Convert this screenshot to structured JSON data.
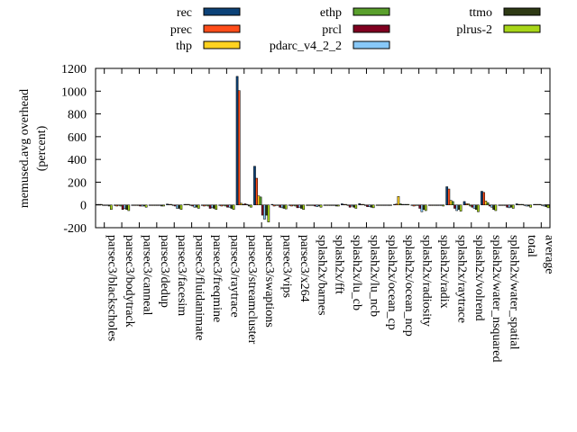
{
  "chart_data": {
    "type": "bar",
    "ylabel": "memused.avg overhead\n(percent)",
    "xlabel": "",
    "title": "",
    "ylim": [
      -200,
      1200
    ],
    "yticks": [
      -200,
      0,
      200,
      400,
      600,
      800,
      1000,
      1200
    ],
    "legend_position": "top",
    "categories": [
      "parsec3/blackscholes",
      "parsec3/bodytrack",
      "parsec3/canneal",
      "parsec3/dedup",
      "parsec3/facesim",
      "parsec3/fluidanimate",
      "parsec3/freqmine",
      "parsec3/raytrace",
      "parsec3/streamcluster",
      "parsec3/swaptions",
      "parsec3/vips",
      "parsec3/x264",
      "splash2x/barnes",
      "splash2x/fft",
      "splash2x/lu_cb",
      "splash2x/lu_ncb",
      "splash2x/ocean_cp",
      "splash2x/ocean_ncp",
      "splash2x/radiosity",
      "splash2x/radix",
      "splash2x/raytrace",
      "splash2x/volrend",
      "splash2x/water_nsquared",
      "splash2x/water_spatial",
      "total",
      "average"
    ],
    "series": [
      {
        "name": "rec",
        "color": "#0c4278",
        "values": [
          5,
          -5,
          -5,
          -5,
          8,
          5,
          -5,
          -5,
          1130,
          340,
          5,
          -5,
          -5,
          -5,
          10,
          12,
          -3,
          5,
          -5,
          -5,
          160,
          30,
          120,
          -5,
          10,
          5
        ]
      },
      {
        "name": "prec",
        "color": "#ff4d1a",
        "values": [
          5,
          -10,
          -5,
          -5,
          5,
          5,
          -10,
          -10,
          1005,
          235,
          -10,
          -10,
          -5,
          -5,
          5,
          5,
          -3,
          8,
          -10,
          -5,
          140,
          10,
          110,
          -5,
          5,
          5
        ]
      },
      {
        "name": "thp",
        "color": "#ffd21f",
        "values": [
          5,
          -5,
          -5,
          -5,
          5,
          5,
          -5,
          -5,
          15,
          80,
          -5,
          -5,
          -5,
          -5,
          5,
          5,
          -3,
          75,
          -5,
          -5,
          40,
          10,
          35,
          -5,
          5,
          5
        ]
      },
      {
        "name": "ethp",
        "color": "#5aa02c",
        "values": [
          -5,
          -10,
          -5,
          -5,
          -5,
          -5,
          -10,
          -10,
          5,
          70,
          -5,
          -10,
          -5,
          -5,
          -5,
          -5,
          -3,
          10,
          -5,
          -5,
          30,
          -10,
          20,
          -5,
          5,
          5
        ]
      },
      {
        "name": "prcl",
        "color": "#800020",
        "values": [
          -5,
          -40,
          -10,
          -5,
          -10,
          -10,
          -30,
          -20,
          10,
          -90,
          -20,
          -25,
          -10,
          -5,
          -20,
          -15,
          -3,
          5,
          -30,
          -5,
          -30,
          -20,
          -10,
          -20,
          -5,
          -5
        ]
      },
      {
        "name": "pdarc_v4_2_2",
        "color": "#88c8f8",
        "values": [
          -5,
          -30,
          -10,
          -5,
          -30,
          -20,
          -25,
          -20,
          5,
          -125,
          -25,
          -20,
          -15,
          -5,
          -10,
          -15,
          -3,
          5,
          -60,
          -5,
          -50,
          -30,
          -20,
          -25,
          -10,
          -10
        ]
      },
      {
        "name": "ttmo",
        "color": "#2e3a14",
        "values": [
          -10,
          -40,
          -10,
          -10,
          -30,
          -20,
          -30,
          -30,
          -10,
          -90,
          -30,
          -30,
          -10,
          -10,
          -20,
          -20,
          -5,
          5,
          -40,
          -5,
          -40,
          -40,
          -40,
          -20,
          -10,
          -15
        ]
      },
      {
        "name": "plrus-2",
        "color": "#a8d618",
        "values": [
          -40,
          -50,
          -20,
          -10,
          -40,
          -30,
          -40,
          -40,
          -20,
          -150,
          -35,
          -40,
          -20,
          -10,
          -30,
          -25,
          -5,
          5,
          -50,
          -10,
          -55,
          -60,
          -50,
          -30,
          -20,
          -25
        ]
      }
    ]
  }
}
